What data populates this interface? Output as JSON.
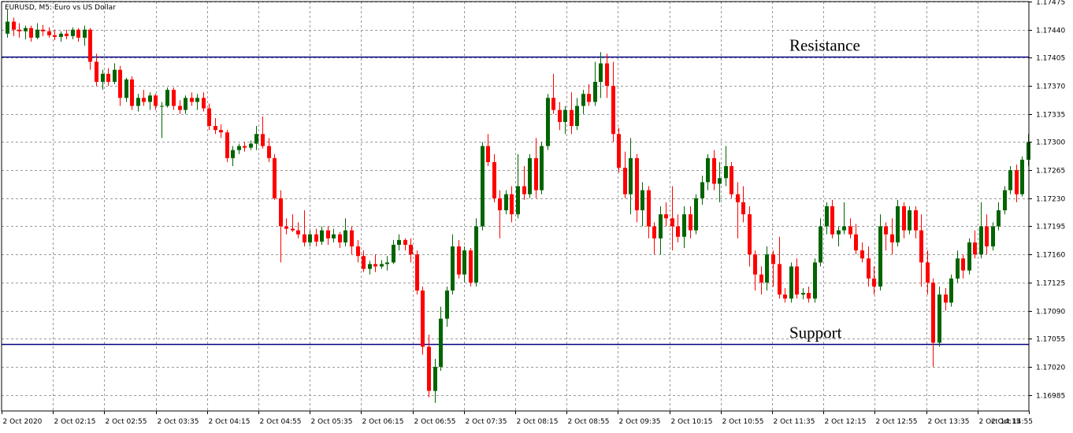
{
  "chart_data": {
    "type": "candlestick",
    "title": "EURUSD, M5:  Euro vs US Dollar",
    "ylim": [
      1.16965,
      1.17475
    ],
    "y_ticks": [
      "1.17475",
      "1.17440",
      "1.17405",
      "1.17370",
      "1.17335",
      "1.17300",
      "1.17265",
      "1.17230",
      "1.17195",
      "1.17160",
      "1.17125",
      "1.17090",
      "1.17055",
      "1.17020",
      "1.16985"
    ],
    "x_ticks": [
      "2 Oct 2020",
      "2 Oct 02:15",
      "2 Oct 02:55",
      "2 Oct 03:35",
      "2 Oct 04:15",
      "2 Oct 04:55",
      "2 Oct 05:35",
      "2 Oct 06:15",
      "2 Oct 06:55",
      "2 Oct 07:35",
      "2 Oct 08:15",
      "2 Oct 08:55",
      "2 Oct 09:35",
      "2 Oct 10:15",
      "2 Oct 10:55",
      "2 Oct 11:35",
      "2 Oct 12:15",
      "2 Oct 12:55",
      "2 Oct 13:35",
      "2 Oct 14:15",
      "2 Oct 14:55"
    ],
    "grid": true,
    "levels": [
      {
        "label": "Resistance",
        "value": 1.17406,
        "color": "#000080"
      },
      {
        "label": "Support",
        "value": 1.17048,
        "color": "#000080"
      }
    ],
    "colors": {
      "bull": "#006400",
      "bear": "#ff0000",
      "grid": "#9a9a9a",
      "axis": "#000000"
    },
    "ohlc": [
      [
        1.17435,
        1.17465,
        1.1743,
        1.1745
      ],
      [
        1.1745,
        1.17455,
        1.17432,
        1.1744
      ],
      [
        1.1744,
        1.17448,
        1.1743,
        1.17438
      ],
      [
        1.17438,
        1.17445,
        1.17428,
        1.17442
      ],
      [
        1.17442,
        1.17445,
        1.17425,
        1.1743
      ],
      [
        1.1743,
        1.17448,
        1.17428,
        1.1744
      ],
      [
        1.1744,
        1.17446,
        1.17432,
        1.17438
      ],
      [
        1.17438,
        1.17443,
        1.1743,
        1.17433
      ],
      [
        1.17433,
        1.1744,
        1.17427,
        1.17431
      ],
      [
        1.17431,
        1.17438,
        1.17425,
        1.17435
      ],
      [
        1.17435,
        1.1744,
        1.17428,
        1.17432
      ],
      [
        1.17432,
        1.17443,
        1.17428,
        1.1744
      ],
      [
        1.1744,
        1.17442,
        1.17425,
        1.1743
      ],
      [
        1.1743,
        1.17445,
        1.1742,
        1.1744
      ],
      [
        1.1744,
        1.17442,
        1.1739,
        1.174
      ],
      [
        1.174,
        1.1741,
        1.1737,
        1.17375
      ],
      [
        1.17375,
        1.1739,
        1.17365,
        1.17385
      ],
      [
        1.17385,
        1.17392,
        1.1737,
        1.17375
      ],
      [
        1.17375,
        1.17398,
        1.17372,
        1.1739
      ],
      [
        1.1739,
        1.17395,
        1.17345,
        1.17355
      ],
      [
        1.17355,
        1.1738,
        1.1735,
        1.17378
      ],
      [
        1.17378,
        1.17382,
        1.1734,
        1.17345
      ],
      [
        1.17345,
        1.1736,
        1.17338,
        1.17355
      ],
      [
        1.17355,
        1.17365,
        1.17345,
        1.1735
      ],
      [
        1.1735,
        1.17362,
        1.1734,
        1.17358
      ],
      [
        1.17358,
        1.1736,
        1.1734,
        1.17345
      ],
      [
        1.17345,
        1.1735,
        1.17305,
        1.17345
      ],
      [
        1.17345,
        1.17368,
        1.17343,
        1.17365
      ],
      [
        1.17365,
        1.17368,
        1.1734,
        1.17345
      ],
      [
        1.17345,
        1.17352,
        1.17335,
        1.1734
      ],
      [
        1.1734,
        1.17358,
        1.17335,
        1.17355
      ],
      [
        1.17355,
        1.17362,
        1.17345,
        1.1735
      ],
      [
        1.1735,
        1.1736,
        1.1734,
        1.17355
      ],
      [
        1.17355,
        1.17362,
        1.17338,
        1.17342
      ],
      [
        1.17342,
        1.17348,
        1.17315,
        1.1732
      ],
      [
        1.1732,
        1.1733,
        1.1731,
        1.17315
      ],
      [
        1.17315,
        1.17322,
        1.17305,
        1.17312
      ],
      [
        1.17312,
        1.17315,
        1.17275,
        1.1728
      ],
      [
        1.1728,
        1.17295,
        1.1727,
        1.1729
      ],
      [
        1.1729,
        1.17298,
        1.17285,
        1.17295
      ],
      [
        1.17295,
        1.173,
        1.17288,
        1.17293
      ],
      [
        1.17293,
        1.17302,
        1.1729,
        1.17298
      ],
      [
        1.17298,
        1.1732,
        1.1729,
        1.1731
      ],
      [
        1.1731,
        1.17332,
        1.17292,
        1.17295
      ],
      [
        1.17295,
        1.17305,
        1.17275,
        1.1728
      ],
      [
        1.1728,
        1.17285,
        1.17228,
        1.1723
      ],
      [
        1.1723,
        1.1724,
        1.1715,
        1.17195
      ],
      [
        1.17195,
        1.17205,
        1.17185,
        1.17192
      ],
      [
        1.17192,
        1.1721,
        1.17188,
        1.1719
      ],
      [
        1.1719,
        1.172,
        1.1718,
        1.17185
      ],
      [
        1.17185,
        1.17215,
        1.1717,
        1.17175
      ],
      [
        1.17175,
        1.1719,
        1.1717,
        1.17185
      ],
      [
        1.17185,
        1.17192,
        1.1717,
        1.17176
      ],
      [
        1.17176,
        1.17195,
        1.17172,
        1.1719
      ],
      [
        1.1719,
        1.17195,
        1.17172,
        1.1718
      ],
      [
        1.1718,
        1.17192,
        1.17175,
        1.17185
      ],
      [
        1.17185,
        1.17188,
        1.17168,
        1.17175
      ],
      [
        1.17175,
        1.17205,
        1.1717,
        1.1719
      ],
      [
        1.1719,
        1.17195,
        1.1716,
        1.1717
      ],
      [
        1.1717,
        1.17178,
        1.1715,
        1.17158
      ],
      [
        1.17158,
        1.17165,
        1.17138,
        1.17142
      ],
      [
        1.17142,
        1.17152,
        1.17135,
        1.17148
      ],
      [
        1.17148,
        1.1716,
        1.17138,
        1.17145
      ],
      [
        1.17145,
        1.17153,
        1.17142,
        1.17148
      ],
      [
        1.17148,
        1.17158,
        1.1714,
        1.1715
      ],
      [
        1.1715,
        1.17178,
        1.17148,
        1.17172
      ],
      [
        1.17172,
        1.17185,
        1.17165,
        1.17178
      ],
      [
        1.17178,
        1.1718,
        1.17165,
        1.17172
      ],
      [
        1.17172,
        1.1718,
        1.1715,
        1.1716
      ],
      [
        1.1716,
        1.17165,
        1.1711,
        1.17115
      ],
      [
        1.17115,
        1.1712,
        1.17035,
        1.17045
      ],
      [
        1.17045,
        1.1706,
        1.16982,
        1.1699
      ],
      [
        1.1699,
        1.1703,
        1.16975,
        1.1702
      ],
      [
        1.1702,
        1.17095,
        1.17015,
        1.1708
      ],
      [
        1.1708,
        1.1712,
        1.1707,
        1.17115
      ],
      [
        1.17115,
        1.17185,
        1.1711,
        1.1717
      ],
      [
        1.1717,
        1.17178,
        1.1713,
        1.17135
      ],
      [
        1.17135,
        1.1717,
        1.17125,
        1.17165
      ],
      [
        1.17165,
        1.17168,
        1.1712,
        1.17125
      ],
      [
        1.17125,
        1.17205,
        1.1712,
        1.17195
      ],
      [
        1.17195,
        1.173,
        1.1719,
        1.17295
      ],
      [
        1.17295,
        1.1731,
        1.1727,
        1.17275
      ],
      [
        1.17275,
        1.17285,
        1.17225,
        1.1723
      ],
      [
        1.1723,
        1.1724,
        1.1718,
        1.17215
      ],
      [
        1.17215,
        1.1724,
        1.1721,
        1.17235
      ],
      [
        1.17235,
        1.17245,
        1.172,
        1.1721
      ],
      [
        1.1721,
        1.17285,
        1.17205,
        1.17245
      ],
      [
        1.17245,
        1.1727,
        1.17228,
        1.17235
      ],
      [
        1.17235,
        1.17285,
        1.1723,
        1.1728
      ],
      [
        1.1728,
        1.17305,
        1.1723,
        1.1724
      ],
      [
        1.1724,
        1.173,
        1.17235,
        1.17295
      ],
      [
        1.17295,
        1.1736,
        1.1729,
        1.17355
      ],
      [
        1.17355,
        1.17385,
        1.17335,
        1.1734
      ],
      [
        1.1734,
        1.1735,
        1.17315,
        1.17325
      ],
      [
        1.17325,
        1.17345,
        1.1731,
        1.1734
      ],
      [
        1.1734,
        1.17362,
        1.1731,
        1.1732
      ],
      [
        1.1732,
        1.17355,
        1.17315,
        1.17345
      ],
      [
        1.17345,
        1.17365,
        1.17335,
        1.1736
      ],
      [
        1.1736,
        1.17372,
        1.17345,
        1.1735
      ],
      [
        1.1735,
        1.174,
        1.17345,
        1.17375
      ],
      [
        1.17375,
        1.17412,
        1.17355,
        1.17398
      ],
      [
        1.17398,
        1.1741,
        1.17355,
        1.1737
      ],
      [
        1.1737,
        1.174,
        1.173,
        1.1731
      ],
      [
        1.1731,
        1.17318,
        1.17262,
        1.17268
      ],
      [
        1.17268,
        1.17288,
        1.1723,
        1.17235
      ],
      [
        1.17235,
        1.17305,
        1.1721,
        1.1728
      ],
      [
        1.1728,
        1.17285,
        1.172,
        1.17215
      ],
      [
        1.17215,
        1.1725,
        1.17195,
        1.1724
      ],
      [
        1.1724,
        1.17245,
        1.1718,
        1.17195
      ],
      [
        1.17195,
        1.172,
        1.1716,
        1.1718
      ],
      [
        1.1718,
        1.1722,
        1.1716,
        1.1721
      ],
      [
        1.1721,
        1.17225,
        1.17195,
        1.17205
      ],
      [
        1.17205,
        1.17245,
        1.17165,
        1.17195
      ],
      [
        1.17195,
        1.1721,
        1.17175,
        1.17182
      ],
      [
        1.17182,
        1.1722,
        1.17168,
        1.1721
      ],
      [
        1.1721,
        1.1722,
        1.1718,
        1.1719
      ],
      [
        1.1719,
        1.17235,
        1.17185,
        1.1723
      ],
      [
        1.1723,
        1.17258,
        1.17222,
        1.1725
      ],
      [
        1.1725,
        1.17285,
        1.1724,
        1.1728
      ],
      [
        1.1728,
        1.1729,
        1.1724,
        1.17248
      ],
      [
        1.17248,
        1.17275,
        1.17225,
        1.17255
      ],
      [
        1.17255,
        1.17295,
        1.17245,
        1.1727
      ],
      [
        1.1727,
        1.17275,
        1.1723,
        1.17235
      ],
      [
        1.17235,
        1.1725,
        1.1718,
        1.17225
      ],
      [
        1.17225,
        1.17245,
        1.172,
        1.1721
      ],
      [
        1.1721,
        1.1722,
        1.17145,
        1.1716
      ],
      [
        1.1716,
        1.17165,
        1.17115,
        1.17135
      ],
      [
        1.17135,
        1.17145,
        1.1711,
        1.17125
      ],
      [
        1.17125,
        1.1717,
        1.17115,
        1.1716
      ],
      [
        1.1716,
        1.17165,
        1.1712,
        1.17148
      ],
      [
        1.17148,
        1.17182,
        1.17105,
        1.1711
      ],
      [
        1.1711,
        1.17118,
        1.171,
        1.17105
      ],
      [
        1.17105,
        1.1715,
        1.171,
        1.17145
      ],
      [
        1.17145,
        1.17155,
        1.17105,
        1.1711
      ],
      [
        1.1711,
        1.17118,
        1.17104,
        1.17112
      ],
      [
        1.17112,
        1.1712,
        1.171,
        1.17105
      ],
      [
        1.17105,
        1.17155,
        1.171,
        1.1715
      ],
      [
        1.1715,
        1.17205,
        1.17145,
        1.17195
      ],
      [
        1.17195,
        1.17225,
        1.17185,
        1.1722
      ],
      [
        1.1722,
        1.17228,
        1.1718,
        1.17185
      ],
      [
        1.17185,
        1.17195,
        1.1717,
        1.1719
      ],
      [
        1.1719,
        1.17225,
        1.17185,
        1.17195
      ],
      [
        1.17195,
        1.17205,
        1.1718,
        1.17185
      ],
      [
        1.17185,
        1.17198,
        1.1716,
        1.17165
      ],
      [
        1.17165,
        1.17175,
        1.1715,
        1.17155
      ],
      [
        1.17155,
        1.1717,
        1.1712,
        1.1713
      ],
      [
        1.1713,
        1.17145,
        1.1711,
        1.1712
      ],
      [
        1.1712,
        1.1721,
        1.17115,
        1.17195
      ],
      [
        1.17195,
        1.172,
        1.17165,
        1.17185
      ],
      [
        1.17185,
        1.17205,
        1.1716,
        1.17175
      ],
      [
        1.17175,
        1.17228,
        1.1717,
        1.1722
      ],
      [
        1.1722,
        1.17225,
        1.1718,
        1.1719
      ],
      [
        1.1719,
        1.1722,
        1.17185,
        1.17215
      ],
      [
        1.17215,
        1.1722,
        1.1718,
        1.1719
      ],
      [
        1.1719,
        1.1721,
        1.1712,
        1.1715
      ],
      [
        1.1715,
        1.17165,
        1.1711,
        1.17125
      ],
      [
        1.17125,
        1.1713,
        1.1702,
        1.1705
      ],
      [
        1.1705,
        1.1712,
        1.17045,
        1.1711
      ],
      [
        1.1711,
        1.17118,
        1.1709,
        1.171
      ],
      [
        1.171,
        1.17135,
        1.17095,
        1.1713
      ],
      [
        1.1713,
        1.17165,
        1.17125,
        1.17155
      ],
      [
        1.17155,
        1.1716,
        1.1713,
        1.1714
      ],
      [
        1.1714,
        1.1718,
        1.17135,
        1.17175
      ],
      [
        1.17175,
        1.1719,
        1.17155,
        1.1716
      ],
      [
        1.1716,
        1.17225,
        1.17155,
        1.17195
      ],
      [
        1.17195,
        1.1721,
        1.1716,
        1.1717
      ],
      [
        1.1717,
        1.172,
        1.17165,
        1.17195
      ],
      [
        1.17195,
        1.17225,
        1.1719,
        1.17215
      ],
      [
        1.17215,
        1.17245,
        1.1721,
        1.1724
      ],
      [
        1.1724,
        1.1727,
        1.17235,
        1.17265
      ],
      [
        1.17265,
        1.17272,
        1.17225,
        1.17235
      ],
      [
        1.17235,
        1.17282,
        1.17232,
        1.17278
      ],
      [
        1.17278,
        1.1731,
        1.1727,
        1.173
      ]
    ]
  }
}
